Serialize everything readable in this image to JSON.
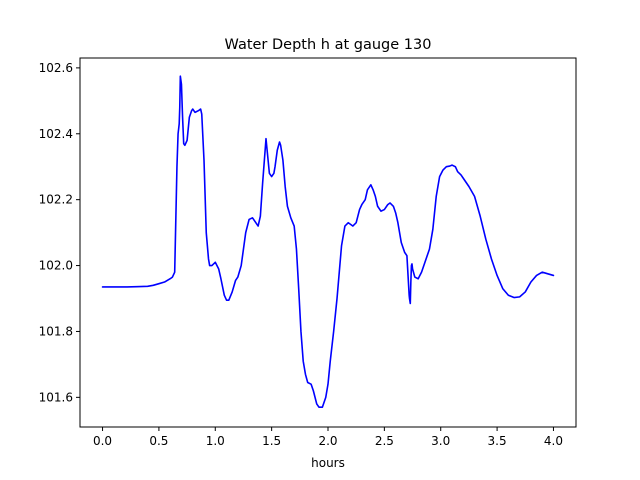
{
  "chart_data": {
    "type": "line",
    "title": "Water Depth h at gauge 130",
    "xlabel": "hours",
    "ylabel": "",
    "xlim": [
      -0.2,
      4.2
    ],
    "ylim": [
      101.51,
      102.63
    ],
    "xticks": [
      0.0,
      0.5,
      1.0,
      1.5,
      2.0,
      2.5,
      3.0,
      3.5,
      4.0
    ],
    "xtick_labels": [
      "0.0",
      "0.5",
      "1.0",
      "1.5",
      "2.0",
      "2.5",
      "3.0",
      "3.5",
      "4.0"
    ],
    "yticks": [
      101.6,
      101.8,
      102.0,
      102.2,
      102.4,
      102.6
    ],
    "ytick_labels": [
      "101.6",
      "101.8",
      "102.0",
      "102.2",
      "102.4",
      "102.6"
    ],
    "grid": false,
    "series": [
      {
        "color": "#0000ff",
        "x": [
          0.0,
          0.1,
          0.2,
          0.3,
          0.4,
          0.45,
          0.5,
          0.55,
          0.6,
          0.62,
          0.64,
          0.66,
          0.67,
          0.68,
          0.685,
          0.69,
          0.7,
          0.71,
          0.72,
          0.73,
          0.75,
          0.77,
          0.79,
          0.8,
          0.82,
          0.85,
          0.87,
          0.88,
          0.9,
          0.92,
          0.94,
          0.95,
          0.97,
          1.0,
          1.03,
          1.05,
          1.08,
          1.1,
          1.12,
          1.15,
          1.18,
          1.2,
          1.23,
          1.27,
          1.3,
          1.33,
          1.35,
          1.38,
          1.4,
          1.42,
          1.45,
          1.48,
          1.5,
          1.52,
          1.53,
          1.55,
          1.57,
          1.58,
          1.6,
          1.62,
          1.64,
          1.67,
          1.7,
          1.72,
          1.74,
          1.76,
          1.78,
          1.8,
          1.82,
          1.85,
          1.87,
          1.9,
          1.92,
          1.95,
          1.98,
          2.0,
          2.02,
          2.05,
          2.08,
          2.1,
          2.12,
          2.15,
          2.18,
          2.2,
          2.22,
          2.25,
          2.28,
          2.3,
          2.33,
          2.35,
          2.38,
          2.4,
          2.42,
          2.44,
          2.47,
          2.5,
          2.53,
          2.55,
          2.58,
          2.6,
          2.62,
          2.65,
          2.68,
          2.7,
          2.72,
          2.723,
          2.73,
          2.735,
          2.74,
          2.745,
          2.75,
          2.77,
          2.8,
          2.83,
          2.86,
          2.9,
          2.93,
          2.96,
          2.99,
          3.02,
          3.05,
          3.08,
          3.1,
          3.13,
          3.15,
          3.18,
          3.2,
          3.25,
          3.3,
          3.35,
          3.4,
          3.45,
          3.5,
          3.55,
          3.6,
          3.65,
          3.7,
          3.75,
          3.8,
          3.85,
          3.9,
          3.92,
          3.95,
          4.0
        ],
        "y": [
          101.935,
          101.935,
          101.935,
          101.936,
          101.937,
          101.94,
          101.945,
          101.95,
          101.96,
          101.965,
          101.98,
          102.3,
          102.4,
          102.43,
          102.48,
          102.575,
          102.55,
          102.45,
          102.37,
          102.365,
          102.38,
          102.45,
          102.47,
          102.475,
          102.465,
          102.47,
          102.475,
          102.46,
          102.32,
          102.1,
          102.02,
          102.0,
          102.0,
          102.01,
          101.99,
          101.96,
          101.91,
          101.895,
          101.895,
          101.92,
          101.955,
          101.965,
          102.0,
          102.1,
          102.14,
          102.145,
          102.135,
          102.12,
          102.15,
          102.25,
          102.385,
          102.28,
          102.27,
          102.28,
          102.3,
          102.35,
          102.375,
          102.365,
          102.32,
          102.24,
          102.18,
          102.145,
          102.12,
          102.05,
          101.93,
          101.8,
          101.71,
          101.67,
          101.645,
          101.64,
          101.62,
          101.58,
          101.57,
          101.57,
          101.6,
          101.64,
          101.71,
          101.8,
          101.9,
          101.98,
          102.06,
          102.12,
          102.13,
          102.125,
          102.12,
          102.13,
          102.17,
          102.185,
          102.2,
          102.23,
          102.245,
          102.23,
          102.21,
          102.18,
          102.165,
          102.17,
          102.185,
          102.19,
          102.18,
          102.16,
          102.13,
          102.07,
          102.04,
          102.03,
          101.91,
          101.9,
          101.885,
          101.95,
          102.0,
          102.005,
          101.99,
          101.965,
          101.96,
          101.98,
          102.01,
          102.05,
          102.11,
          102.21,
          102.27,
          102.29,
          102.3,
          102.302,
          102.305,
          102.3,
          102.285,
          102.275,
          102.265,
          102.24,
          102.21,
          102.15,
          102.08,
          102.02,
          101.97,
          101.93,
          101.91,
          101.903,
          101.905,
          101.92,
          101.95,
          101.97,
          101.98,
          101.978,
          101.975,
          101.97
        ]
      }
    ]
  }
}
